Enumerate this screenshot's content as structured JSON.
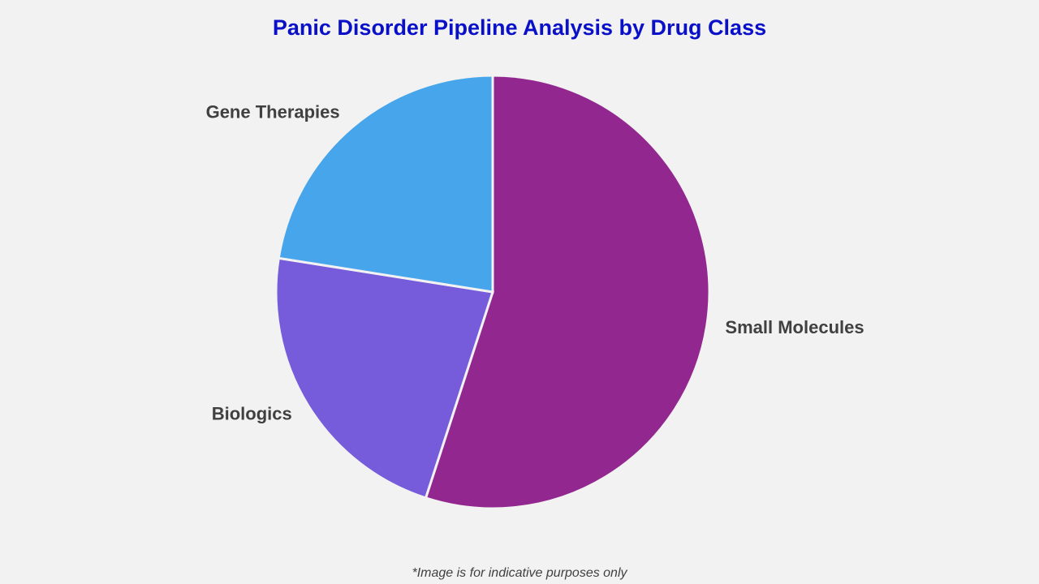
{
  "chart_data": {
    "type": "pie",
    "title": "Panic Disorder Pipeline Analysis by Drug Class",
    "categories": [
      "Small Molecules",
      "Biologics",
      "Gene Therapies"
    ],
    "values": [
      55,
      22.5,
      22.5
    ],
    "colors": [
      "#92278f",
      "#765cdb",
      "#46a5eb"
    ],
    "footnote": "*Image is for indicative purposes only"
  }
}
